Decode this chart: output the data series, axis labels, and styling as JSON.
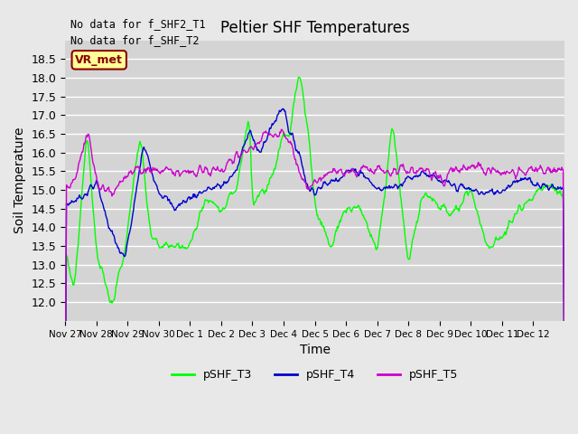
{
  "title": "Peltier SHF Temperatures",
  "xlabel": "Time",
  "ylabel": "Soil Temperature",
  "ylim": [
    11.5,
    19.0
  ],
  "yticks": [
    12.0,
    12.5,
    13.0,
    13.5,
    14.0,
    14.5,
    15.0,
    15.5,
    16.0,
    16.5,
    17.0,
    17.5,
    18.0,
    18.5
  ],
  "xtick_labels": [
    "Nov 27",
    "Nov 28",
    "Nov 29",
    "Nov 30",
    "Dec 1",
    "Dec 2",
    "Dec 3",
    "Dec 4",
    "Dec 5",
    "Dec 6",
    "Dec 7",
    "Dec 8",
    "Dec 9",
    "Dec 10",
    "Dec 11",
    "Dec 12"
  ],
  "no_data_text1": "No data for f_SHF2_T1",
  "no_data_text2": "No data for f_SHF_T2",
  "vr_met_label": "VR_met",
  "color_T3": "#00FF00",
  "color_T4": "#0000CD",
  "color_T5": "#CC00CC",
  "background_color": "#E8E8E8",
  "plot_bg_color": "#D4D4D4",
  "grid_color": "#FFFFFF",
  "legend_labels": [
    "pSHF_T3",
    "pSHF_T4",
    "pSHF_T5"
  ],
  "t3_keypoints_x": [
    0,
    0.3,
    0.7,
    1.0,
    1.5,
    1.9,
    2.4,
    2.8,
    3.3,
    4.0,
    4.5,
    5.0,
    5.5,
    5.9,
    6.0,
    6.5,
    7.0,
    7.2,
    7.5,
    7.8,
    8.0,
    8.5,
    9.0,
    9.5,
    10.0,
    10.5,
    11.0,
    11.5,
    12.0,
    12.5,
    13.0,
    13.5,
    14.0,
    14.5,
    15.0,
    15.5,
    16.0
  ],
  "t3_keypoints_y": [
    13.3,
    12.4,
    16.6,
    13.3,
    11.9,
    13.3,
    16.5,
    13.5,
    13.5,
    13.5,
    14.8,
    14.5,
    15.0,
    17.1,
    14.7,
    15.0,
    16.5,
    16.5,
    18.2,
    16.5,
    14.5,
    13.5,
    14.5,
    14.5,
    13.3,
    16.8,
    13.0,
    15.0,
    14.5,
    14.5,
    15.0,
    13.5,
    13.7,
    14.5,
    14.8,
    15.2,
    14.8
  ],
  "t4_keypoints_x": [
    0,
    0.5,
    1.0,
    1.5,
    1.9,
    2.2,
    2.5,
    3.0,
    3.5,
    4.0,
    4.5,
    5.0,
    5.5,
    5.9,
    6.2,
    6.5,
    7.0,
    7.2,
    7.5,
    7.8,
    8.0,
    8.5,
    9.0,
    9.5,
    10.0,
    10.5,
    11.0,
    11.5,
    12.0,
    12.5,
    13.0,
    13.5,
    14.0,
    14.5,
    15.0,
    15.5,
    16.0
  ],
  "t4_keypoints_y": [
    14.6,
    14.8,
    15.2,
    13.8,
    13.1,
    14.5,
    16.2,
    15.0,
    14.5,
    14.8,
    15.0,
    15.1,
    15.5,
    16.7,
    15.9,
    16.5,
    17.3,
    16.5,
    16.0,
    15.0,
    15.0,
    15.2,
    15.5,
    15.5,
    15.0,
    15.1,
    15.3,
    15.5,
    15.2,
    15.1,
    15.0,
    14.9,
    15.0,
    15.3,
    15.2,
    15.1,
    15.0
  ],
  "t5_keypoints_x": [
    0,
    0.3,
    0.7,
    1.0,
    1.5,
    1.9,
    2.2,
    2.5,
    3.0,
    3.5,
    4.0,
    4.5,
    5.0,
    5.5,
    5.9,
    6.2,
    6.5,
    7.0,
    7.2,
    7.5,
    7.8,
    8.0,
    8.5,
    9.0,
    9.5,
    10.0,
    10.5,
    11.0,
    11.5,
    12.0,
    12.5,
    13.0,
    13.5,
    14.0,
    14.5,
    15.0,
    15.5,
    16.0
  ],
  "t5_keypoints_y": [
    15.2,
    15.1,
    16.6,
    15.3,
    14.9,
    15.3,
    15.5,
    15.5,
    15.5,
    15.5,
    15.5,
    15.5,
    15.5,
    15.9,
    16.0,
    16.3,
    16.5,
    16.5,
    16.3,
    15.5,
    15.0,
    15.2,
    15.5,
    15.5,
    15.5,
    15.5,
    15.5,
    15.5,
    15.6,
    15.3,
    15.5,
    15.6,
    15.5,
    15.5,
    15.5,
    15.5,
    15.5,
    15.5
  ],
  "figsize": [
    6.4,
    4.8
  ],
  "dpi": 100
}
